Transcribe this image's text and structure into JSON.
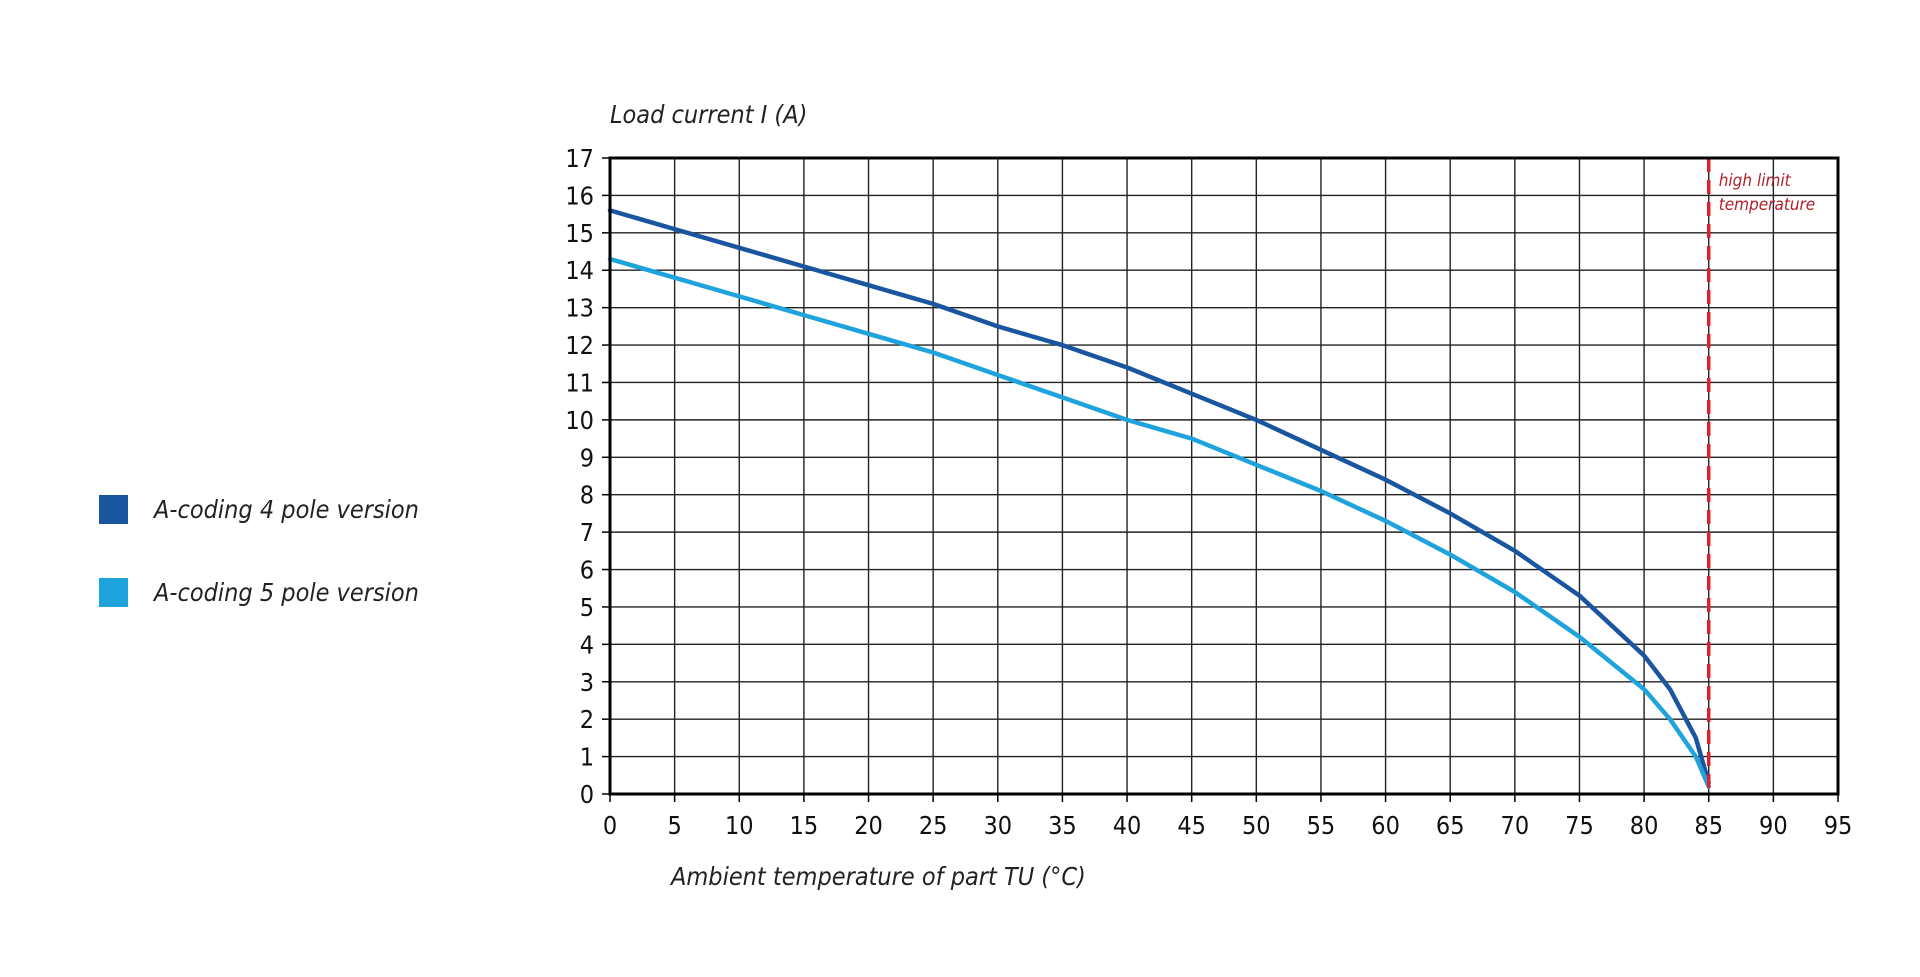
{
  "chart_data": {
    "type": "line",
    "title": "",
    "ylabel": "Load current I (A)",
    "xlabel": "Ambient temperature of part TU (°C)",
    "xlim": [
      0,
      95
    ],
    "ylim": [
      0,
      17
    ],
    "x_ticks": [
      0,
      5,
      10,
      15,
      20,
      25,
      30,
      35,
      40,
      45,
      50,
      55,
      60,
      65,
      70,
      75,
      80,
      85,
      90,
      95
    ],
    "y_ticks": [
      0,
      1,
      2,
      3,
      4,
      5,
      6,
      7,
      8,
      9,
      10,
      11,
      12,
      13,
      14,
      15,
      16,
      17
    ],
    "grid": true,
    "legend_position": "left",
    "series": [
      {
        "name": "A-coding 4 pole version",
        "color": "#1a56a0",
        "x": [
          0,
          5,
          10,
          15,
          20,
          25,
          30,
          35,
          40,
          45,
          50,
          55,
          60,
          65,
          70,
          75,
          80,
          82,
          84,
          85
        ],
        "y": [
          15.6,
          15.1,
          14.6,
          14.1,
          13.6,
          13.1,
          12.5,
          12.0,
          11.4,
          10.7,
          10.0,
          9.2,
          8.4,
          7.5,
          6.5,
          5.3,
          3.7,
          2.8,
          1.5,
          0.3
        ]
      },
      {
        "name": "A-coding 5 pole version",
        "color": "#1fa3dc",
        "x": [
          0,
          5,
          10,
          15,
          20,
          25,
          30,
          35,
          40,
          45,
          50,
          55,
          60,
          65,
          70,
          75,
          80,
          82,
          84,
          85
        ],
        "y": [
          14.3,
          13.8,
          13.3,
          12.8,
          12.3,
          11.8,
          11.2,
          10.6,
          10.0,
          9.5,
          8.8,
          8.1,
          7.3,
          6.4,
          5.4,
          4.2,
          2.8,
          2.0,
          1.0,
          0.2
        ]
      }
    ],
    "annotations": [
      {
        "type": "vline",
        "x": 85,
        "label": "high limit temperature",
        "label_lines": [
          "high limit",
          "temperature"
        ],
        "color": "#e0202a"
      }
    ]
  }
}
